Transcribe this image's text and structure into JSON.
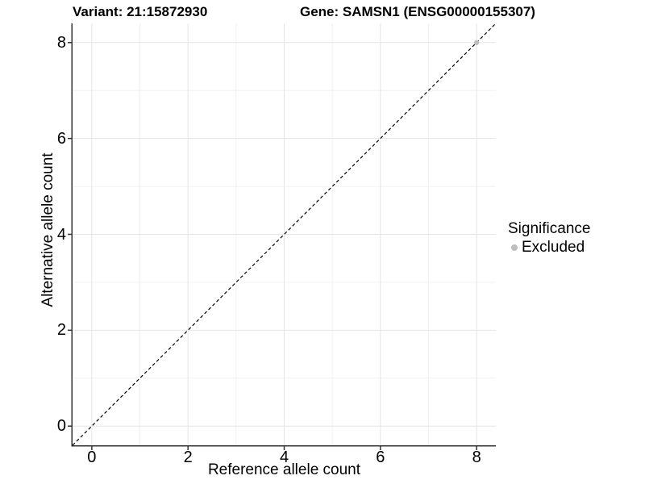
{
  "header": {
    "variant_title": "Variant: 21:15872930",
    "gene_title": "Gene: SAMSN1 (ENSG00000155307)"
  },
  "chart_data": {
    "type": "scatter",
    "title": "Variant: 21:15872930   Gene: SAMSN1 (ENSG00000155307)",
    "xlabel": "Reference allele count",
    "ylabel": "Alternative allele count",
    "xlim": [
      -0.4,
      8.4
    ],
    "ylim": [
      -0.4,
      8.4
    ],
    "x_major_ticks": [
      0,
      2,
      4,
      6,
      8
    ],
    "x_minor_ticks": [
      1,
      3,
      5,
      7
    ],
    "y_major_ticks": [
      0,
      2,
      4,
      6,
      8
    ],
    "y_minor_ticks": [
      1,
      3,
      5,
      7
    ],
    "grid": "major+minor",
    "legend_position": "right",
    "series": [
      {
        "name": "Excluded",
        "color": "#bebebe",
        "marker": "circle",
        "points": [
          {
            "x": 8,
            "y": 8
          }
        ]
      }
    ],
    "reference_line": {
      "equation": "y = x",
      "style": "dashed",
      "color": "#000000"
    }
  },
  "legend": {
    "title": "Significance",
    "items": [
      {
        "label": "Excluded",
        "color": "#bebebe",
        "marker": "circle"
      }
    ]
  },
  "colors": {
    "background": "#ffffff",
    "panel_background": "#ffffff",
    "major_grid": "#e5e5e5",
    "minor_grid": "#f0f0f0",
    "axis_line": "#333333",
    "tick_mark": "#333333",
    "text": "#000000",
    "point": "#bebebe"
  }
}
